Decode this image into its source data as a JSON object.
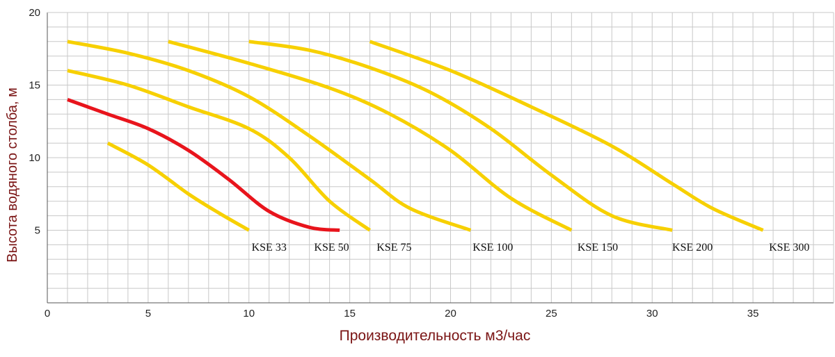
{
  "chart_data": {
    "type": "line",
    "title": "",
    "xlabel": "Производительность м3/час",
    "ylabel": "Высота водяного столба, м",
    "xlim": [
      0,
      39
    ],
    "ylim": [
      0,
      20
    ],
    "xticks": [
      "0",
      "5",
      "10",
      "15",
      "20",
      "25",
      "30",
      "35"
    ],
    "yticks": [
      "5",
      "10",
      "15",
      "20"
    ],
    "grid": true,
    "colors": {
      "highlight": "#e8141c",
      "default": "#f7d000",
      "grid": "#c8c8c8"
    },
    "series": [
      {
        "name": "KSE 33",
        "highlight": false,
        "points": [
          [
            3,
            11
          ],
          [
            5,
            9.5
          ],
          [
            7,
            7.5
          ],
          [
            8.5,
            6.2
          ],
          [
            10,
            5
          ]
        ]
      },
      {
        "name": "KSE 50",
        "highlight": true,
        "points": [
          [
            1,
            14
          ],
          [
            3,
            13
          ],
          [
            5,
            12
          ],
          [
            7,
            10.5
          ],
          [
            9,
            8.5
          ],
          [
            11,
            6.3
          ],
          [
            13,
            5.2
          ],
          [
            14.5,
            5
          ]
        ]
      },
      {
        "name": "KSE 75",
        "highlight": false,
        "points": [
          [
            1,
            16
          ],
          [
            4,
            15
          ],
          [
            7,
            13.5
          ],
          [
            10,
            12
          ],
          [
            12,
            10
          ],
          [
            14,
            7
          ],
          [
            16,
            5
          ]
        ]
      },
      {
        "name": "KSE 100",
        "highlight": false,
        "points": [
          [
            1,
            18
          ],
          [
            4,
            17.2
          ],
          [
            7,
            16
          ],
          [
            10,
            14.2
          ],
          [
            13,
            11.5
          ],
          [
            16,
            8.5
          ],
          [
            18,
            6.5
          ],
          [
            21,
            5
          ]
        ]
      },
      {
        "name": "KSE 150",
        "highlight": false,
        "points": [
          [
            6,
            18
          ],
          [
            10,
            16.5
          ],
          [
            14,
            14.8
          ],
          [
            17,
            13
          ],
          [
            20,
            10.5
          ],
          [
            23,
            7.2
          ],
          [
            26,
            5
          ]
        ]
      },
      {
        "name": "KSE 200",
        "highlight": false,
        "points": [
          [
            10,
            18
          ],
          [
            13,
            17.4
          ],
          [
            16,
            16.2
          ],
          [
            19,
            14.5
          ],
          [
            22,
            12
          ],
          [
            25,
            8.8
          ],
          [
            28,
            6
          ],
          [
            31,
            5
          ]
        ]
      },
      {
        "name": "KSE 300",
        "highlight": false,
        "points": [
          [
            16,
            18
          ],
          [
            20,
            16
          ],
          [
            24,
            13.5
          ],
          [
            28,
            10.8
          ],
          [
            31,
            8.2
          ],
          [
            33,
            6.5
          ],
          [
            35.5,
            5
          ]
        ]
      }
    ],
    "labels": [
      {
        "text": "KSE 33",
        "x": 11,
        "y": 3.6
      },
      {
        "text": "KSE 50",
        "x": 14.1,
        "y": 3.6
      },
      {
        "text": "KSE 75",
        "x": 17.2,
        "y": 3.6
      },
      {
        "text": "KSE 100",
        "x": 22.1,
        "y": 3.6
      },
      {
        "text": "KSE 150",
        "x": 27.3,
        "y": 3.6
      },
      {
        "text": "KSE 200",
        "x": 32.0,
        "y": 3.6
      },
      {
        "text": "KSE 300",
        "x": 36.8,
        "y": 3.6
      }
    ]
  }
}
